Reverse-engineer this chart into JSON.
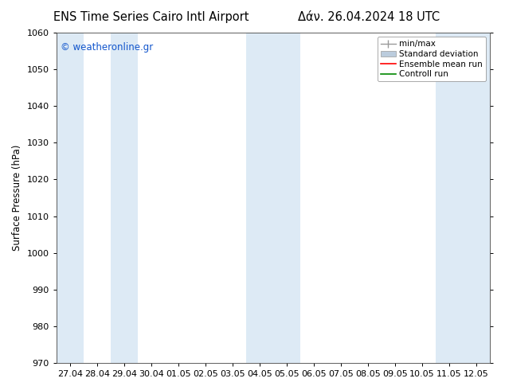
{
  "title_left": "ENS Time Series Cairo Intl Airport",
  "title_right": "Δάν. 26.04.2024 18 UTC",
  "ylabel": "Surface Pressure (hPa)",
  "ylim": [
    970,
    1060
  ],
  "yticks": [
    970,
    980,
    990,
    1000,
    1010,
    1020,
    1030,
    1040,
    1050,
    1060
  ],
  "xtick_labels": [
    "27.04",
    "28.04",
    "29.04",
    "30.04",
    "01.05",
    "02.05",
    "03.05",
    "04.05",
    "05.05",
    "06.05",
    "07.05",
    "08.05",
    "09.05",
    "10.05",
    "11.05",
    "12.05"
  ],
  "shaded_indices": [
    0,
    2,
    7,
    8,
    14,
    15
  ],
  "shaded_color": "#ddeaf5",
  "background_color": "#ffffff",
  "plot_bg_color": "#ffffff",
  "watermark": "© weatheronline.gr",
  "watermark_color": "#1155cc",
  "legend_labels": [
    "min/max",
    "Standard deviation",
    "Ensemble mean run",
    "Controll run"
  ],
  "legend_colors": [
    "#999999",
    "#bbccdd",
    "#ff0000",
    "#008800"
  ],
  "title_fontsize": 10.5,
  "tick_fontsize": 8,
  "ylabel_fontsize": 8.5,
  "watermark_fontsize": 8.5,
  "legend_fontsize": 7.5
}
